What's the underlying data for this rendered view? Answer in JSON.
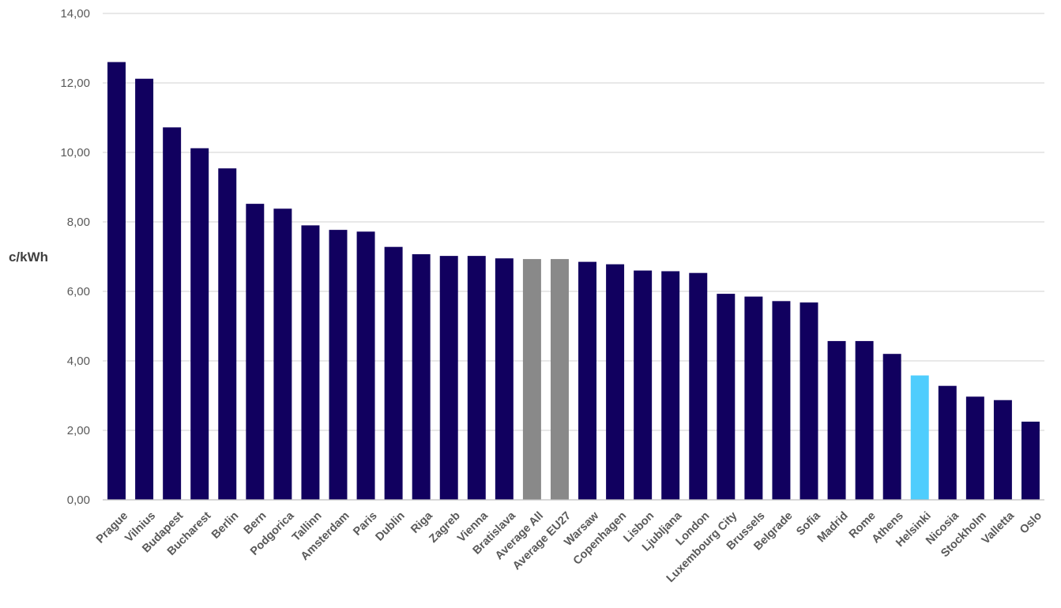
{
  "chart_data": {
    "type": "bar",
    "title": "",
    "xlabel": "",
    "ylabel": "c/kWh",
    "ylim": [
      0,
      14
    ],
    "yticks": [
      "0,00",
      "2,00",
      "4,00",
      "6,00",
      "8,00",
      "10,00",
      "12,00",
      "14,00"
    ],
    "grid": true,
    "legend": "none",
    "categories": [
      "Prague",
      "Vilnius",
      "Budapest",
      "Bucharest",
      "Berlin",
      "Bern",
      "Podgorica",
      "Tallinn",
      "Amsterdam",
      "Paris",
      "Dublin",
      "Riga",
      "Zagreb",
      "Vienna",
      "Bratislava",
      "Average All",
      "Average EU27",
      "Warsaw",
      "Copenhagen",
      "Lisbon",
      "Ljubljana",
      "London",
      "Luxembourg City",
      "Brussels",
      "Belgrade",
      "Sofia",
      "Madrid",
      "Rome",
      "Athens",
      "Helsinki",
      "Nicosia",
      "Stockholm",
      "Valletta",
      "Oslo"
    ],
    "values": [
      12.6,
      12.12,
      10.72,
      10.12,
      9.54,
      8.52,
      8.38,
      7.9,
      7.77,
      7.72,
      7.28,
      7.07,
      7.02,
      7.02,
      6.95,
      6.93,
      6.93,
      6.85,
      6.78,
      6.6,
      6.58,
      6.53,
      5.93,
      5.85,
      5.72,
      5.68,
      4.57,
      4.57,
      4.2,
      3.58,
      3.28,
      2.97,
      2.87,
      2.25
    ],
    "colors": {
      "default": "#11005f",
      "average": "#898989",
      "highlight": "#4fcdfd",
      "grid": "#d9d9d9",
      "text": "#595959"
    },
    "bar_color_keys": [
      "default",
      "default",
      "default",
      "default",
      "default",
      "default",
      "default",
      "default",
      "default",
      "default",
      "default",
      "default",
      "default",
      "default",
      "default",
      "average",
      "average",
      "default",
      "default",
      "default",
      "default",
      "default",
      "default",
      "default",
      "default",
      "default",
      "default",
      "default",
      "default",
      "highlight",
      "default",
      "default",
      "default",
      "default"
    ]
  }
}
